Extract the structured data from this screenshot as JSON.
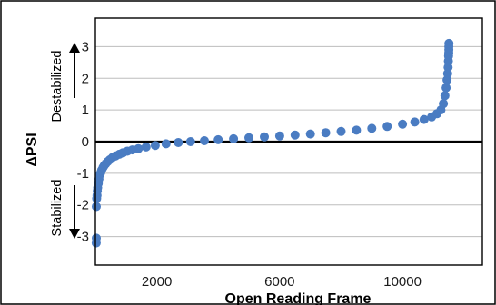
{
  "chart_data": {
    "type": "scatter",
    "title": "",
    "xlabel": "Open Reading Frame",
    "ylabel": "ΔPSI",
    "xlim": [
      0,
      12600
    ],
    "ylim": [
      -3.9,
      3.9
    ],
    "x_ticks": [
      2000,
      6000,
      10000
    ],
    "y_ticks": [
      -3,
      -2,
      -1,
      0,
      1,
      2,
      3
    ],
    "grid": true,
    "legend": "none",
    "annotations": [
      "Destabilized",
      "Stabilized"
    ],
    "colors": {
      "points": "#4a7cc2",
      "zero_line": "#000000",
      "frame": "#000000",
      "grid": "#bdbdbd"
    },
    "series": [
      {
        "x": [
          27,
          29,
          31,
          40,
          52,
          62,
          75,
          95,
          115,
          145,
          175,
          205,
          245,
          285,
          340,
          400,
          470,
          560,
          660,
          780,
          900,
          1040,
          1200,
          1400,
          1650,
          1950,
          2300,
          2700,
          3100,
          3550,
          4000,
          4500,
          5000,
          5500,
          6000,
          6500,
          7000,
          7500,
          8000,
          8500,
          9000,
          9500,
          10000,
          10400,
          10700,
          10950,
          11120,
          11250,
          11330,
          11380,
          11420,
          11450,
          11470,
          11485,
          11495,
          11500,
          11505,
          11508,
          11510,
          11511
        ],
        "y": [
          -3.2,
          -3.05,
          -2.05,
          -1.8,
          -1.7,
          -1.55,
          -1.45,
          -1.32,
          -1.18,
          -1.05,
          -0.98,
          -0.9,
          -0.82,
          -0.76,
          -0.69,
          -0.63,
          -0.57,
          -0.5,
          -0.45,
          -0.4,
          -0.35,
          -0.3,
          -0.26,
          -0.22,
          -0.17,
          -0.12,
          -0.07,
          -0.03,
          0.0,
          0.03,
          0.06,
          0.09,
          0.12,
          0.15,
          0.18,
          0.21,
          0.24,
          0.28,
          0.32,
          0.36,
          0.42,
          0.48,
          0.55,
          0.62,
          0.7,
          0.78,
          0.88,
          1.0,
          1.2,
          1.45,
          1.7,
          1.95,
          2.15,
          2.35,
          2.55,
          2.7,
          2.8,
          2.9,
          3.0,
          3.1
        ]
      }
    ]
  }
}
